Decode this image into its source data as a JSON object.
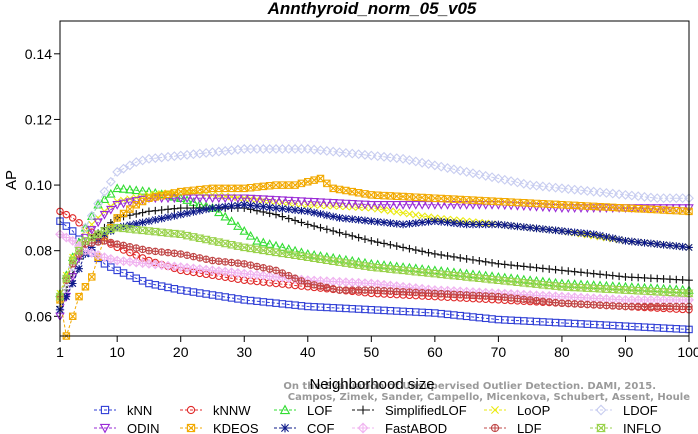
{
  "chart_data": {
    "type": "line",
    "title": "Annthyroid_norm_05_v05",
    "xlabel": "Neighborhood size",
    "ylabel": "AP",
    "xlim": [
      1,
      100
    ],
    "ylim": [
      0.054,
      0.15
    ],
    "x_ticks": [
      1,
      10,
      20,
      30,
      40,
      50,
      60,
      70,
      80,
      90,
      100
    ],
    "y_ticks": [
      0.06,
      0.08,
      0.1,
      0.12,
      0.14
    ],
    "y_tick_labels": [
      "0.06",
      "0.08",
      "0.10",
      "0.12",
      "0.14"
    ],
    "grid": false,
    "legend_position": "bottom",
    "credit": [
      "Campos, Zimek, Sander, Campello, Micenkova, Schubert, Assent, Houle",
      "On the Evaluation of Unsupervised Outlier Detection. DAMI, 2015."
    ],
    "series": [
      {
        "name": "kNN",
        "color": "#2f3ed6",
        "marker": "square",
        "points": [
          [
            1,
            0.089
          ],
          [
            3,
            0.086
          ],
          [
            5,
            0.081
          ],
          [
            8,
            0.076
          ],
          [
            10,
            0.074
          ],
          [
            15,
            0.07
          ],
          [
            20,
            0.068
          ],
          [
            30,
            0.065
          ],
          [
            40,
            0.063
          ],
          [
            50,
            0.062
          ],
          [
            60,
            0.061
          ],
          [
            70,
            0.059
          ],
          [
            80,
            0.058
          ],
          [
            90,
            0.057
          ],
          [
            100,
            0.056
          ]
        ]
      },
      {
        "name": "kNNW",
        "color": "#e02a2a",
        "marker": "circle",
        "points": [
          [
            1,
            0.092
          ],
          [
            3,
            0.09
          ],
          [
            5,
            0.087
          ],
          [
            8,
            0.083
          ],
          [
            10,
            0.081
          ],
          [
            15,
            0.077
          ],
          [
            20,
            0.074
          ],
          [
            30,
            0.071
          ],
          [
            40,
            0.069
          ],
          [
            50,
            0.067
          ],
          [
            60,
            0.066
          ],
          [
            70,
            0.065
          ],
          [
            80,
            0.064
          ],
          [
            90,
            0.063
          ],
          [
            100,
            0.062
          ]
        ]
      },
      {
        "name": "LOF",
        "color": "#33dd33",
        "marker": "triangle",
        "points": [
          [
            1,
            0.067
          ],
          [
            3,
            0.078
          ],
          [
            5,
            0.087
          ],
          [
            7,
            0.094
          ],
          [
            10,
            0.099
          ],
          [
            15,
            0.098
          ],
          [
            20,
            0.096
          ],
          [
            25,
            0.093
          ],
          [
            28,
            0.089
          ],
          [
            32,
            0.083
          ],
          [
            40,
            0.079
          ],
          [
            50,
            0.076
          ],
          [
            60,
            0.074
          ],
          [
            70,
            0.072
          ],
          [
            80,
            0.07
          ],
          [
            90,
            0.069
          ],
          [
            100,
            0.068
          ]
        ]
      },
      {
        "name": "SimplifiedLOF",
        "color": "#111111",
        "marker": "plus",
        "points": [
          [
            1,
            0.063
          ],
          [
            3,
            0.073
          ],
          [
            5,
            0.082
          ],
          [
            8,
            0.087
          ],
          [
            10,
            0.09
          ],
          [
            15,
            0.092
          ],
          [
            20,
            0.093
          ],
          [
            25,
            0.093
          ],
          [
            30,
            0.093
          ],
          [
            35,
            0.091
          ],
          [
            40,
            0.088
          ],
          [
            50,
            0.083
          ],
          [
            60,
            0.079
          ],
          [
            70,
            0.076
          ],
          [
            80,
            0.074
          ],
          [
            90,
            0.072
          ],
          [
            100,
            0.071
          ]
        ]
      },
      {
        "name": "LoOP",
        "color": "#eaea10",
        "marker": "x",
        "points": [
          [
            1,
            0.067
          ],
          [
            3,
            0.078
          ],
          [
            5,
            0.086
          ],
          [
            8,
            0.092
          ],
          [
            10,
            0.095
          ],
          [
            15,
            0.097
          ],
          [
            20,
            0.098
          ],
          [
            25,
            0.097
          ],
          [
            30,
            0.096
          ],
          [
            40,
            0.094
          ],
          [
            50,
            0.093
          ],
          [
            60,
            0.09
          ],
          [
            70,
            0.088
          ],
          [
            80,
            0.086
          ],
          [
            90,
            0.083
          ],
          [
            100,
            0.081
          ]
        ]
      },
      {
        "name": "LDOF",
        "color": "#c8cdf0",
        "marker": "diamond",
        "points": [
          [
            1,
            0.062
          ],
          [
            3,
            0.075
          ],
          [
            5,
            0.087
          ],
          [
            8,
            0.098
          ],
          [
            10,
            0.104
          ],
          [
            13,
            0.107
          ],
          [
            15,
            0.108
          ],
          [
            20,
            0.109
          ],
          [
            25,
            0.11
          ],
          [
            30,
            0.111
          ],
          [
            35,
            0.111
          ],
          [
            40,
            0.111
          ],
          [
            45,
            0.11
          ],
          [
            50,
            0.109
          ],
          [
            55,
            0.108
          ],
          [
            60,
            0.106
          ],
          [
            65,
            0.104
          ],
          [
            70,
            0.102
          ],
          [
            75,
            0.1
          ],
          [
            80,
            0.099
          ],
          [
            85,
            0.098
          ],
          [
            90,
            0.097
          ],
          [
            95,
            0.096
          ],
          [
            100,
            0.096
          ]
        ]
      },
      {
        "name": "ODIN",
        "color": "#9a2ad6",
        "marker": "triangle-down",
        "points": [
          [
            1,
            0.06
          ],
          [
            3,
            0.072
          ],
          [
            5,
            0.084
          ],
          [
            8,
            0.091
          ],
          [
            10,
            0.094
          ],
          [
            15,
            0.096
          ],
          [
            20,
            0.096
          ],
          [
            25,
            0.096
          ],
          [
            30,
            0.096
          ],
          [
            40,
            0.095
          ],
          [
            50,
            0.094
          ],
          [
            60,
            0.094
          ],
          [
            70,
            0.094
          ],
          [
            80,
            0.093
          ],
          [
            90,
            0.093
          ],
          [
            100,
            0.093
          ]
        ]
      },
      {
        "name": "KDEOS",
        "color": "#f2a900",
        "marker": "square-x",
        "points": [
          [
            1,
            0.065
          ],
          [
            2,
            0.054
          ],
          [
            3,
            0.06
          ],
          [
            4,
            0.066
          ],
          [
            5,
            0.069
          ],
          [
            6,
            0.072
          ],
          [
            8,
            0.084
          ],
          [
            10,
            0.09
          ],
          [
            13,
            0.094
          ],
          [
            15,
            0.096
          ],
          [
            20,
            0.098
          ],
          [
            25,
            0.099
          ],
          [
            30,
            0.099
          ],
          [
            35,
            0.1
          ],
          [
            38,
            0.1
          ],
          [
            40,
            0.101
          ],
          [
            42,
            0.102
          ],
          [
            44,
            0.099
          ],
          [
            50,
            0.097
          ],
          [
            60,
            0.096
          ],
          [
            70,
            0.095
          ],
          [
            80,
            0.094
          ],
          [
            90,
            0.093
          ],
          [
            100,
            0.092
          ]
        ]
      },
      {
        "name": "COF",
        "color": "#0e1a8a",
        "marker": "star",
        "points": [
          [
            1,
            0.062
          ],
          [
            3,
            0.07
          ],
          [
            5,
            0.079
          ],
          [
            8,
            0.085
          ],
          [
            10,
            0.087
          ],
          [
            15,
            0.089
          ],
          [
            20,
            0.091
          ],
          [
            25,
            0.093
          ],
          [
            30,
            0.094
          ],
          [
            35,
            0.093
          ],
          [
            40,
            0.092
          ],
          [
            45,
            0.09
          ],
          [
            50,
            0.089
          ],
          [
            55,
            0.088
          ],
          [
            60,
            0.089
          ],
          [
            65,
            0.088
          ],
          [
            70,
            0.088
          ],
          [
            75,
            0.087
          ],
          [
            80,
            0.086
          ],
          [
            85,
            0.085
          ],
          [
            90,
            0.083
          ],
          [
            95,
            0.082
          ],
          [
            100,
            0.081
          ]
        ]
      },
      {
        "name": "FastABOD",
        "color": "#f0b3f0",
        "marker": "diamond-plus",
        "points": [
          [
            1,
            0.085
          ],
          [
            3,
            0.083
          ],
          [
            5,
            0.08
          ],
          [
            8,
            0.078
          ],
          [
            10,
            0.077
          ],
          [
            15,
            0.076
          ],
          [
            20,
            0.075
          ],
          [
            30,
            0.073
          ],
          [
            40,
            0.071
          ],
          [
            50,
            0.07
          ],
          [
            60,
            0.068
          ],
          [
            70,
            0.067
          ],
          [
            80,
            0.066
          ],
          [
            90,
            0.065
          ],
          [
            100,
            0.065
          ]
        ]
      },
      {
        "name": "LDF",
        "color": "#c04848",
        "marker": "circle-plus",
        "points": [
          [
            1,
            0.066
          ],
          [
            3,
            0.076
          ],
          [
            5,
            0.082
          ],
          [
            8,
            0.083
          ],
          [
            10,
            0.082
          ],
          [
            15,
            0.08
          ],
          [
            20,
            0.079
          ],
          [
            25,
            0.077
          ],
          [
            30,
            0.076
          ],
          [
            35,
            0.074
          ],
          [
            40,
            0.07
          ],
          [
            45,
            0.068
          ],
          [
            50,
            0.068
          ],
          [
            60,
            0.067
          ],
          [
            70,
            0.066
          ],
          [
            80,
            0.064
          ],
          [
            90,
            0.063
          ],
          [
            100,
            0.063
          ]
        ]
      },
      {
        "name": "INFLO",
        "color": "#9ad24c",
        "marker": "hourglass",
        "points": [
          [
            1,
            0.066
          ],
          [
            3,
            0.077
          ],
          [
            5,
            0.083
          ],
          [
            8,
            0.086
          ],
          [
            10,
            0.087
          ],
          [
            15,
            0.086
          ],
          [
            20,
            0.085
          ],
          [
            25,
            0.083
          ],
          [
            30,
            0.081
          ],
          [
            40,
            0.078
          ],
          [
            50,
            0.075
          ],
          [
            60,
            0.073
          ],
          [
            70,
            0.071
          ],
          [
            80,
            0.069
          ],
          [
            90,
            0.068
          ],
          [
            100,
            0.067
          ]
        ]
      }
    ]
  }
}
